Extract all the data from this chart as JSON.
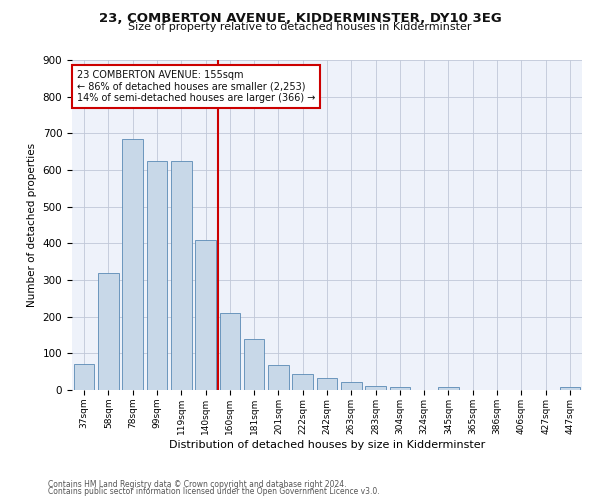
{
  "title1": "23, COMBERTON AVENUE, KIDDERMINSTER, DY10 3EG",
  "title2": "Size of property relative to detached houses in Kidderminster",
  "xlabel": "Distribution of detached houses by size in Kidderminster",
  "ylabel": "Number of detached properties",
  "categories": [
    "37sqm",
    "58sqm",
    "78sqm",
    "99sqm",
    "119sqm",
    "140sqm",
    "160sqm",
    "181sqm",
    "201sqm",
    "222sqm",
    "242sqm",
    "263sqm",
    "283sqm",
    "304sqm",
    "324sqm",
    "345sqm",
    "365sqm",
    "386sqm",
    "406sqm",
    "427sqm",
    "447sqm"
  ],
  "values": [
    70,
    320,
    685,
    625,
    625,
    410,
    210,
    138,
    68,
    45,
    32,
    22,
    12,
    7,
    0,
    8,
    0,
    0,
    0,
    0,
    8
  ],
  "bar_color": "#c8d8e8",
  "bar_edge_color": "#5a8ab5",
  "vline_color": "#cc0000",
  "annotation_text": "23 COMBERTON AVENUE: 155sqm\n← 86% of detached houses are smaller (2,253)\n14% of semi-detached houses are larger (366) →",
  "annotation_box_color": "#ffffff",
  "annotation_box_edge": "#cc0000",
  "ylim": [
    0,
    900
  ],
  "yticks": [
    0,
    100,
    200,
    300,
    400,
    500,
    600,
    700,
    800,
    900
  ],
  "background_color": "#eef2fa",
  "grid_color": "#c0c8d8",
  "footer1": "Contains HM Land Registry data © Crown copyright and database right 2024.",
  "footer2": "Contains public sector information licensed under the Open Government Licence v3.0."
}
